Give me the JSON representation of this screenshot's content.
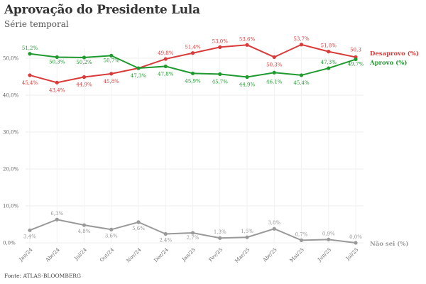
{
  "title": "Aprovação do Presidente Lula",
  "subtitle": "Série temporal",
  "source": "Fonte: ATLAS-BLOOMBERG",
  "chart_data": {
    "type": "line",
    "categories": [
      "Jan/24",
      "Abr/24",
      "Jul/24",
      "Out/24",
      "Nov/24",
      "Dez/24",
      "Jan/25",
      "Fev/25",
      "Mar/25",
      "Abr/25",
      "Mai/25",
      "Jun/25",
      "Jul/25"
    ],
    "ylim": [
      0,
      55
    ],
    "yticks": [
      "0,0%",
      "10,0%",
      "20,0%",
      "30,0%",
      "40,0%",
      "50,0%"
    ],
    "ytick_values": [
      0,
      10,
      20,
      30,
      40,
      50
    ],
    "grid": true,
    "legend": "right, at line ends",
    "series": [
      {
        "name": "Desaprovo (%)",
        "color": "#d93a3a",
        "values": [
          45.4,
          43.4,
          44.9,
          45.8,
          47.3,
          49.8,
          51.4,
          53.0,
          53.6,
          50.3,
          53.7,
          51.8,
          50.3
        ],
        "labels": [
          "45,4%",
          "43,4%",
          "44,9%",
          "45,8%",
          "",
          "49,8%",
          "51,4%",
          "53,0%",
          "53,6%",
          "50,3%",
          "53,7%",
          "51,8%",
          "50,3"
        ]
      },
      {
        "name": "Aprovo (%)",
        "color": "#1e9a2e",
        "values": [
          51.2,
          50.3,
          50.2,
          50.7,
          47.3,
          47.8,
          45.9,
          45.7,
          44.9,
          46.1,
          45.4,
          47.3,
          49.7
        ],
        "labels": [
          "51,2%",
          "50,3%",
          "50,2%",
          "50,7%",
          "47,3%",
          "47,8%",
          "45,9%",
          "45,7%",
          "44,9%",
          "46,1%",
          "45,4%",
          "47,3%",
          "49,7%"
        ]
      },
      {
        "name": "Não sei (%)",
        "color": "#999999",
        "values": [
          3.4,
          6.3,
          4.8,
          3.6,
          5.6,
          2.4,
          2.7,
          1.3,
          1.5,
          3.8,
          0.7,
          0.9,
          0.0
        ],
        "labels": [
          "3,4%",
          "6,3%",
          "4,8%",
          "3,6%",
          "5,6%",
          "2,4%",
          "2,7%",
          "1,3%",
          "1,5%",
          "3,8%",
          "0,7%",
          "0,9%",
          "0,0%"
        ]
      }
    ]
  }
}
